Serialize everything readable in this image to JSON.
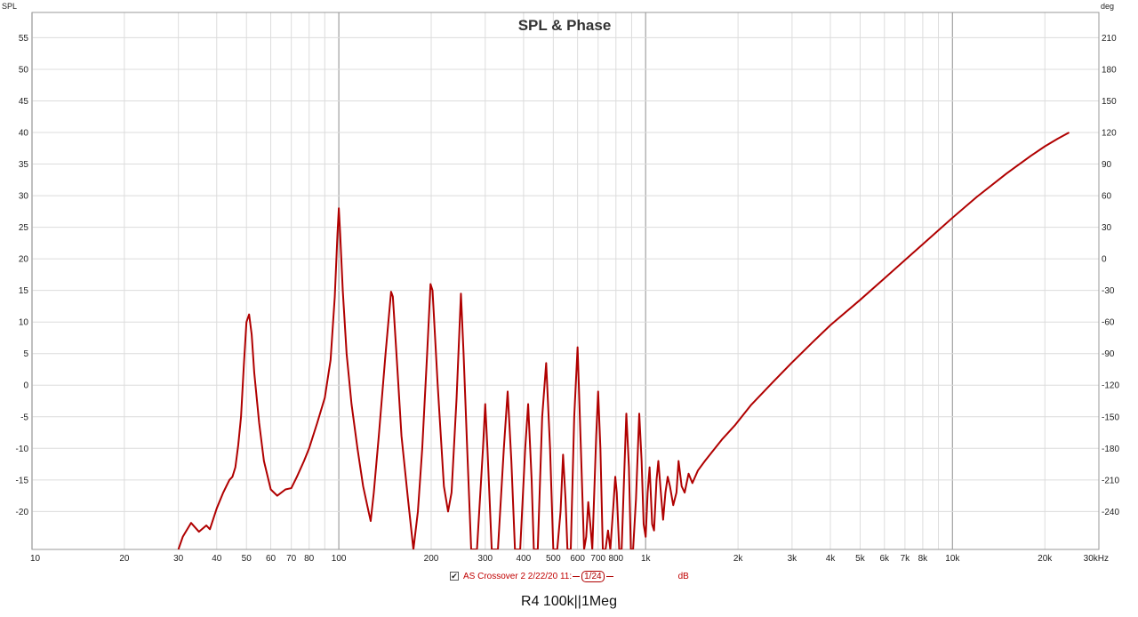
{
  "chart_data": {
    "type": "line",
    "title": "SPL & Phase",
    "ylabel_left": "SPL",
    "ylabel_right": "deg",
    "x_scale": "log",
    "xlim": [
      10,
      30000
    ],
    "ylim": [
      -26,
      59
    ],
    "ylim_right": [
      -276,
      234
    ],
    "grid": true,
    "x_ticks": [
      {
        "value": 10,
        "label": "10"
      },
      {
        "value": 20,
        "label": "20"
      },
      {
        "value": 30,
        "label": "30"
      },
      {
        "value": 40,
        "label": "40"
      },
      {
        "value": 50,
        "label": "50"
      },
      {
        "value": 60,
        "label": "60"
      },
      {
        "value": 70,
        "label": "70"
      },
      {
        "value": 80,
        "label": "80"
      },
      {
        "value": 100,
        "label": "100"
      },
      {
        "value": 200,
        "label": "200"
      },
      {
        "value": 300,
        "label": "300"
      },
      {
        "value": 400,
        "label": "400"
      },
      {
        "value": 500,
        "label": "500"
      },
      {
        "value": 600,
        "label": "600"
      },
      {
        "value": 700,
        "label": "700"
      },
      {
        "value": 800,
        "label": "800"
      },
      {
        "value": 1000,
        "label": "1k"
      },
      {
        "value": 2000,
        "label": "2k"
      },
      {
        "value": 3000,
        "label": "3k"
      },
      {
        "value": 4000,
        "label": "4k"
      },
      {
        "value": 5000,
        "label": "5k"
      },
      {
        "value": 6000,
        "label": "6k"
      },
      {
        "value": 7000,
        "label": "7k"
      },
      {
        "value": 8000,
        "label": "8k"
      },
      {
        "value": 10000,
        "label": "10k"
      },
      {
        "value": 20000,
        "label": "20k"
      },
      {
        "value": 30000,
        "label": "30kHz"
      }
    ],
    "y_ticks_left": [
      55,
      50,
      45,
      40,
      35,
      30,
      25,
      20,
      15,
      10,
      5,
      0,
      -5,
      -10,
      -15,
      -20
    ],
    "y_ticks_right": [
      210,
      180,
      150,
      120,
      90,
      60,
      30,
      0,
      -30,
      -60,
      -90,
      -120,
      -150,
      -180,
      -210,
      -240
    ],
    "series": [
      {
        "name": "AS Crossover 2 2/22/20 11:",
        "color": "#b00000",
        "points": [
          [
            30,
            -26
          ],
          [
            31,
            -24
          ],
          [
            33,
            -21.8
          ],
          [
            35,
            -23.2
          ],
          [
            37,
            -22.2
          ],
          [
            38,
            -22.8
          ],
          [
            40,
            -19.5
          ],
          [
            42,
            -17
          ],
          [
            44,
            -15
          ],
          [
            45,
            -14.5
          ],
          [
            46,
            -13
          ],
          [
            47,
            -9.5
          ],
          [
            48,
            -5
          ],
          [
            49,
            3
          ],
          [
            50,
            10
          ],
          [
            51,
            11.2
          ],
          [
            52,
            8
          ],
          [
            53,
            2
          ],
          [
            55,
            -6
          ],
          [
            57,
            -12
          ],
          [
            60,
            -16.5
          ],
          [
            63,
            -17.5
          ],
          [
            67,
            -16.5
          ],
          [
            70,
            -16.3
          ],
          [
            73,
            -14.5
          ],
          [
            77,
            -12
          ],
          [
            80,
            -10
          ],
          [
            85,
            -6
          ],
          [
            90,
            -2
          ],
          [
            94,
            4
          ],
          [
            97,
            14
          ],
          [
            99,
            24
          ],
          [
            100,
            28
          ],
          [
            101,
            24
          ],
          [
            103,
            15
          ],
          [
            106,
            5
          ],
          [
            110,
            -3
          ],
          [
            115,
            -10
          ],
          [
            120,
            -16
          ],
          [
            125,
            -20
          ],
          [
            127,
            -21.5
          ],
          [
            130,
            -17
          ],
          [
            135,
            -8
          ],
          [
            142,
            5
          ],
          [
            148,
            14.8
          ],
          [
            150,
            14
          ],
          [
            155,
            3
          ],
          [
            160,
            -8
          ],
          [
            168,
            -18
          ],
          [
            175,
            -26
          ],
          [
            181,
            -20
          ],
          [
            187,
            -10
          ],
          [
            194,
            5
          ],
          [
            199,
            16
          ],
          [
            202,
            15
          ],
          [
            210,
            0
          ],
          [
            220,
            -16
          ],
          [
            227,
            -20
          ],
          [
            233,
            -17
          ],
          [
            242,
            -2
          ],
          [
            250,
            14.5
          ],
          [
            255,
            5
          ],
          [
            262,
            -10
          ],
          [
            270,
            -26
          ],
          [
            282,
            -26
          ],
          [
            295,
            -10
          ],
          [
            300,
            -3
          ],
          [
            305,
            -10
          ],
          [
            315,
            -26
          ],
          [
            330,
            -26
          ],
          [
            345,
            -10
          ],
          [
            355,
            -1
          ],
          [
            365,
            -12
          ],
          [
            375,
            -26
          ],
          [
            390,
            -26
          ],
          [
            405,
            -10
          ],
          [
            414,
            -3
          ],
          [
            425,
            -15
          ],
          [
            432,
            -26
          ],
          [
            445,
            -26
          ],
          [
            460,
            -5
          ],
          [
            474,
            3.5
          ],
          [
            488,
            -10
          ],
          [
            500,
            -26
          ],
          [
            515,
            -26
          ],
          [
            528,
            -20
          ],
          [
            538,
            -11
          ],
          [
            548,
            -18
          ],
          [
            556,
            -26
          ],
          [
            570,
            -26
          ],
          [
            585,
            -5
          ],
          [
            600,
            6
          ],
          [
            615,
            -10
          ],
          [
            630,
            -26
          ],
          [
            640,
            -24
          ],
          [
            650,
            -18.5
          ],
          [
            660,
            -22
          ],
          [
            670,
            -26
          ],
          [
            690,
            -8
          ],
          [
            700,
            -1
          ],
          [
            712,
            -10
          ],
          [
            725,
            -26
          ],
          [
            740,
            -26
          ],
          [
            754,
            -23
          ],
          [
            767,
            -26
          ],
          [
            785,
            -19
          ],
          [
            796,
            -14.5
          ],
          [
            805,
            -17
          ],
          [
            820,
            -26
          ],
          [
            835,
            -26
          ],
          [
            850,
            -15
          ],
          [
            865,
            -4.5
          ],
          [
            882,
            -13
          ],
          [
            895,
            -26
          ],
          [
            910,
            -26
          ],
          [
            930,
            -18
          ],
          [
            953,
            -4.5
          ],
          [
            970,
            -12
          ],
          [
            985,
            -22
          ],
          [
            1000,
            -24
          ],
          [
            1015,
            -17
          ],
          [
            1030,
            -13
          ],
          [
            1050,
            -22
          ],
          [
            1065,
            -23
          ],
          [
            1085,
            -15
          ],
          [
            1100,
            -12
          ],
          [
            1125,
            -18
          ],
          [
            1140,
            -21.3
          ],
          [
            1160,
            -17
          ],
          [
            1180,
            -14.5
          ],
          [
            1200,
            -16
          ],
          [
            1230,
            -19
          ],
          [
            1260,
            -17
          ],
          [
            1280,
            -12
          ],
          [
            1310,
            -16
          ],
          [
            1340,
            -17
          ],
          [
            1380,
            -14
          ],
          [
            1420,
            -15.5
          ],
          [
            1480,
            -13.5
          ],
          [
            1560,
            -12
          ],
          [
            1650,
            -10.5
          ],
          [
            1780,
            -8.5
          ],
          [
            1950,
            -6.4
          ],
          [
            2200,
            -3.2
          ],
          [
            2600,
            0.5
          ],
          [
            3000,
            3.6
          ],
          [
            3500,
            6.8
          ],
          [
            4000,
            9.5
          ],
          [
            5000,
            13.5
          ],
          [
            6000,
            16.9
          ],
          [
            7000,
            19.8
          ],
          [
            8000,
            22.3
          ],
          [
            10000,
            26.5
          ],
          [
            12000,
            29.8
          ],
          [
            15000,
            33.5
          ],
          [
            18000,
            36.3
          ],
          [
            20000,
            37.8
          ],
          [
            22000,
            39.0
          ],
          [
            24000,
            40.0
          ]
        ]
      }
    ]
  },
  "legend": {
    "checked_symbol": "✔",
    "series_label": "AS Crossover 2 2/22/20 11:",
    "smoothing_label": "1/24",
    "unit_label": "dB"
  },
  "footer_text": "R4 100k||1Meg"
}
